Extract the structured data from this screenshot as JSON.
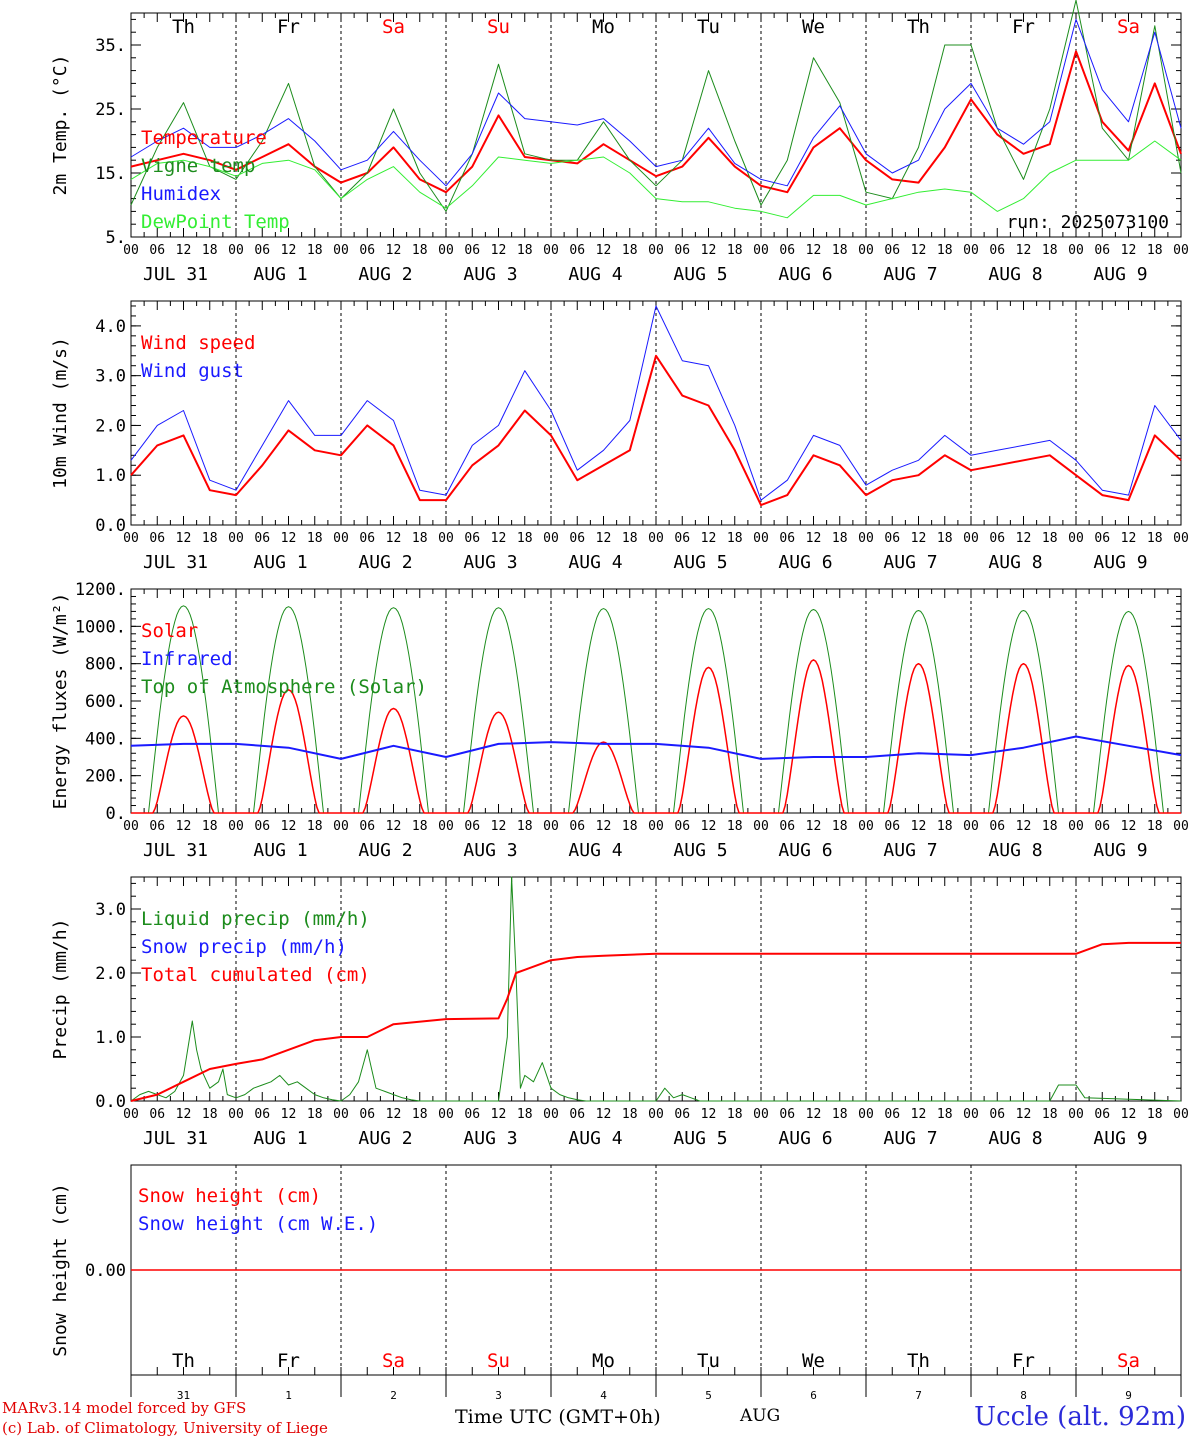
{
  "run_label": "run: 2025073100",
  "station": "Uccle (alt. 92m)",
  "footer": {
    "model": "MARv3.14 model forced by GFS",
    "lab": "(c) Lab. of Climatology, University of Liege",
    "time_axis": "Time UTC (GMT+0h)",
    "month": "AUG"
  },
  "colors": {
    "red": "#ff0000",
    "green": "#1c8c1c",
    "blue": "#1a1aff",
    "lightgreen": "#33ee33",
    "black": "#000000"
  },
  "days": [
    {
      "dow": "Th",
      "weekend": false,
      "date": "JUL 31",
      "daynum": "31"
    },
    {
      "dow": "Fr",
      "weekend": false,
      "date": "AUG  1",
      "daynum": "1"
    },
    {
      "dow": "Sa",
      "weekend": true,
      "date": "AUG  2",
      "daynum": "2"
    },
    {
      "dow": "Su",
      "weekend": true,
      "date": "AUG  3",
      "daynum": "3"
    },
    {
      "dow": "Mo",
      "weekend": false,
      "date": "AUG  4",
      "daynum": "4"
    },
    {
      "dow": "Tu",
      "weekend": false,
      "date": "AUG  5",
      "daynum": "5"
    },
    {
      "dow": "We",
      "weekend": false,
      "date": "AUG  6",
      "daynum": "6"
    },
    {
      "dow": "Th",
      "weekend": false,
      "date": "AUG  7",
      "daynum": "7"
    },
    {
      "dow": "Fr",
      "weekend": false,
      "date": "AUG  8",
      "daynum": "8"
    },
    {
      "dow": "Sa",
      "weekend": true,
      "date": "AUG  9",
      "daynum": "9"
    }
  ],
  "hour_labels": [
    "00",
    "06",
    "12",
    "18"
  ],
  "end_hour_label": "00",
  "chart_data": [
    {
      "type": "line",
      "ylabel": "2m Temp. (°C)",
      "ylim": [
        5,
        40
      ],
      "yticks": [
        5,
        15,
        25,
        35
      ],
      "ytick_labels": [
        "5.",
        "15.",
        "25.",
        "35."
      ],
      "legend": [
        {
          "label": "Temperature",
          "color": "red"
        },
        {
          "label": "Vigne temp",
          "color": "green"
        },
        {
          "label": "Humidex",
          "color": "blue"
        },
        {
          "label": "DewPoint Temp",
          "color": "lightgreen"
        }
      ],
      "series": [
        {
          "name": "Temperature",
          "color": "red",
          "width": 2,
          "x": [
            0,
            6,
            12,
            18,
            24,
            30,
            36,
            42,
            48,
            54,
            60,
            66,
            72,
            78,
            84,
            90,
            96,
            102,
            108,
            114,
            120,
            126,
            132,
            138,
            144,
            150,
            156,
            162,
            168,
            174,
            180,
            186,
            192,
            198,
            204,
            210,
            216,
            222,
            228,
            234,
            240
          ],
          "values": [
            16,
            17,
            18,
            17,
            15.5,
            17.5,
            19.5,
            16,
            13.5,
            15,
            19,
            14,
            12,
            16,
            24,
            17.5,
            17,
            16.5,
            19.5,
            17,
            14.5,
            16,
            20.5,
            16,
            13,
            12,
            19,
            22,
            17,
            14,
            13.5,
            19,
            26.5,
            21,
            18,
            19.5,
            34,
            23,
            18.5,
            29,
            18
          ]
        },
        {
          "name": "Vigne temp",
          "color": "green",
          "width": 1,
          "x": [
            0,
            6,
            12,
            18,
            24,
            30,
            36,
            42,
            48,
            54,
            60,
            66,
            72,
            78,
            84,
            90,
            96,
            102,
            108,
            114,
            120,
            126,
            132,
            138,
            144,
            150,
            156,
            162,
            168,
            174,
            180,
            186,
            192,
            198,
            204,
            210,
            216,
            222,
            228,
            234,
            240
          ],
          "values": [
            10,
            19,
            26,
            16,
            14,
            20,
            29,
            16,
            11,
            15,
            25,
            15,
            9,
            18,
            32,
            18,
            17,
            17,
            23,
            17,
            13,
            17,
            31,
            20,
            10,
            17,
            33,
            26,
            12,
            11,
            19,
            35,
            35,
            22,
            14,
            25,
            42,
            22,
            17,
            38,
            15
          ]
        },
        {
          "name": "Humidex",
          "color": "blue",
          "width": 1,
          "x": [
            0,
            6,
            12,
            18,
            24,
            30,
            36,
            42,
            48,
            54,
            60,
            66,
            72,
            78,
            84,
            90,
            96,
            102,
            108,
            114,
            120,
            126,
            132,
            138,
            144,
            150,
            156,
            162,
            168,
            174,
            180,
            186,
            192,
            198,
            204,
            210,
            216,
            222,
            228,
            234,
            240
          ],
          "values": [
            17.5,
            20,
            22,
            19,
            19,
            21,
            23.5,
            20,
            15.5,
            17,
            21.5,
            17,
            13,
            18,
            27.5,
            23.5,
            23,
            22.5,
            23.5,
            20,
            16,
            17,
            22,
            16.5,
            14,
            13,
            20.5,
            25.5,
            18,
            15,
            17,
            25,
            29,
            22,
            19.5,
            23,
            39,
            28,
            23,
            37,
            22
          ]
        },
        {
          "name": "DewPoint Temp",
          "color": "lightgreen",
          "width": 1,
          "x": [
            0,
            6,
            12,
            18,
            24,
            30,
            36,
            42,
            48,
            54,
            60,
            66,
            72,
            78,
            84,
            90,
            96,
            102,
            108,
            114,
            120,
            126,
            132,
            138,
            144,
            150,
            156,
            162,
            168,
            174,
            180,
            186,
            192,
            198,
            204,
            210,
            216,
            222,
            228,
            234,
            240
          ],
          "values": [
            14,
            16.5,
            17,
            16,
            14.5,
            16.5,
            17,
            15.5,
            11,
            14,
            16,
            12,
            9.5,
            13,
            17.5,
            17,
            16.5,
            17,
            17.5,
            15,
            11,
            10.5,
            10.5,
            9.5,
            9,
            8,
            11.5,
            11.5,
            10,
            11,
            12,
            12.5,
            12,
            9,
            11,
            15,
            17,
            17,
            17,
            20,
            17
          ]
        }
      ]
    },
    {
      "type": "line",
      "ylabel": "10m Wind (m/s)",
      "ylim": [
        0,
        4.5
      ],
      "yticks": [
        0,
        1,
        2,
        3,
        4
      ],
      "ytick_labels": [
        "0.0",
        "1.0",
        "2.0",
        "3.0",
        "4.0"
      ],
      "legend": [
        {
          "label": "Wind speed",
          "color": "red"
        },
        {
          "label": "Wind gust",
          "color": "blue"
        }
      ],
      "series": [
        {
          "name": "Wind speed",
          "color": "red",
          "width": 2,
          "x": [
            0,
            6,
            12,
            18,
            24,
            30,
            36,
            42,
            48,
            54,
            60,
            66,
            72,
            78,
            84,
            90,
            96,
            102,
            108,
            114,
            120,
            126,
            132,
            138,
            144,
            150,
            156,
            162,
            168,
            174,
            180,
            186,
            192,
            198,
            204,
            210,
            216,
            222,
            228,
            234,
            240
          ],
          "values": [
            1.0,
            1.6,
            1.8,
            0.7,
            0.6,
            1.2,
            1.9,
            1.5,
            1.4,
            2.0,
            1.6,
            0.5,
            0.5,
            1.2,
            1.6,
            2.3,
            1.8,
            0.9,
            1.2,
            1.5,
            3.4,
            2.6,
            2.4,
            1.5,
            0.4,
            0.6,
            1.4,
            1.2,
            0.6,
            0.9,
            1.0,
            1.4,
            1.1,
            1.2,
            1.3,
            1.4,
            1.0,
            0.6,
            0.5,
            1.8,
            1.3
          ]
        },
        {
          "name": "Wind gust",
          "color": "blue",
          "width": 1,
          "x": [
            0,
            6,
            12,
            18,
            24,
            30,
            36,
            42,
            48,
            54,
            60,
            66,
            72,
            78,
            84,
            90,
            96,
            102,
            108,
            114,
            120,
            126,
            132,
            138,
            144,
            150,
            156,
            162,
            168,
            174,
            180,
            186,
            192,
            198,
            204,
            210,
            216,
            222,
            228,
            234,
            240
          ],
          "values": [
            1.3,
            2.0,
            2.3,
            0.9,
            0.7,
            1.6,
            2.5,
            1.8,
            1.8,
            2.5,
            2.1,
            0.7,
            0.6,
            1.6,
            2.0,
            3.1,
            2.3,
            1.1,
            1.5,
            2.1,
            4.4,
            3.3,
            3.2,
            2.0,
            0.5,
            0.9,
            1.8,
            1.6,
            0.8,
            1.1,
            1.3,
            1.8,
            1.4,
            1.5,
            1.6,
            1.7,
            1.3,
            0.7,
            0.6,
            2.4,
            1.7
          ]
        }
      ]
    },
    {
      "type": "line",
      "ylabel": "Energy fluxes (W/m²)",
      "ylim": [
        0,
        1200
      ],
      "yticks": [
        0,
        200,
        400,
        600,
        800,
        1000,
        1200
      ],
      "ytick_labels": [
        "0.",
        "200.",
        "400.",
        "600.",
        "800.",
        "1000.",
        "1200."
      ],
      "legend": [
        {
          "label": "Solar",
          "color": "red"
        },
        {
          "label": "Infrared",
          "color": "blue"
        },
        {
          "label": "Top of Atmosphere (Solar)",
          "color": "green"
        }
      ],
      "toa_peak": [
        1110,
        1105,
        1100,
        1100,
        1095,
        1095,
        1090,
        1085,
        1085,
        1080
      ],
      "solar_peak": [
        520,
        660,
        560,
        540,
        380,
        780,
        820,
        800,
        800,
        790
      ],
      "series": [
        {
          "name": "Infrared",
          "color": "blue",
          "width": 2,
          "x": [
            0,
            12,
            24,
            36,
            48,
            60,
            72,
            84,
            96,
            108,
            120,
            132,
            144,
            156,
            168,
            180,
            192,
            204,
            216,
            228,
            240
          ],
          "values": [
            360,
            370,
            370,
            350,
            290,
            360,
            300,
            370,
            380,
            370,
            370,
            350,
            290,
            300,
            300,
            320,
            310,
            350,
            410,
            360,
            310
          ]
        }
      ]
    },
    {
      "type": "line",
      "ylabel": "Precip (mm/h)",
      "ylim": [
        0,
        3.5
      ],
      "yticks": [
        0,
        1,
        2,
        3
      ],
      "ytick_labels": [
        "0.0",
        "1.0",
        "2.0",
        "3.0"
      ],
      "legend": [
        {
          "label": "Liquid precip (mm/h)",
          "color": "green"
        },
        {
          "label": "Snow precip (mm/h)",
          "color": "blue"
        },
        {
          "label": "Total cumulated (cm)",
          "color": "red"
        }
      ],
      "series": [
        {
          "name": "Liquid precip (mm/h)",
          "color": "green",
          "width": 1,
          "x": [
            0,
            2,
            4,
            6,
            8,
            10,
            12,
            14,
            15,
            16,
            18,
            20,
            21,
            22,
            24,
            26,
            28,
            30,
            32,
            34,
            36,
            38,
            40,
            42,
            44,
            46,
            48,
            50,
            52,
            54,
            55,
            56,
            58,
            60,
            62,
            64,
            66,
            68,
            70,
            72,
            80,
            84,
            86,
            87,
            88,
            89,
            90,
            92,
            94,
            96,
            98,
            100,
            102,
            104,
            106,
            120,
            122,
            124,
            126,
            128,
            130,
            132,
            210,
            212,
            214,
            216,
            218,
            240
          ],
          "values": [
            0,
            0.1,
            0.15,
            0.1,
            0.05,
            0.15,
            0.4,
            1.25,
            0.8,
            0.5,
            0.2,
            0.3,
            0.5,
            0.1,
            0.05,
            0.1,
            0.2,
            0.25,
            0.3,
            0.4,
            0.25,
            0.3,
            0.2,
            0.1,
            0.05,
            0.02,
            0,
            0.1,
            0.3,
            0.8,
            0.5,
            0.2,
            0.15,
            0.1,
            0.05,
            0.02,
            0,
            0,
            0,
            0,
            0,
            0,
            1.0,
            3.5,
            2.0,
            0.2,
            0.4,
            0.3,
            0.6,
            0.2,
            0.1,
            0.05,
            0.02,
            0,
            0,
            0,
            0.2,
            0.05,
            0.1,
            0.05,
            0,
            0,
            0,
            0.25,
            0.25,
            0.25,
            0.05,
            0
          ]
        },
        {
          "name": "Total cumulated (cm)",
          "color": "red",
          "width": 2,
          "x": [
            0,
            6,
            12,
            18,
            24,
            30,
            36,
            42,
            48,
            54,
            60,
            72,
            84,
            86,
            88,
            90,
            96,
            102,
            108,
            120,
            132,
            144,
            168,
            192,
            216,
            222,
            228,
            240
          ],
          "values": [
            0,
            0.1,
            0.3,
            0.5,
            0.58,
            0.65,
            0.8,
            0.95,
            1.0,
            1.0,
            1.2,
            1.28,
            1.29,
            1.6,
            2.0,
            2.05,
            2.2,
            2.25,
            2.27,
            2.3,
            2.3,
            2.3,
            2.3,
            2.3,
            2.3,
            2.45,
            2.47,
            2.47
          ]
        }
      ]
    },
    {
      "type": "line",
      "ylabel": "Snow height (cm)",
      "ytick_labels": [
        "0.00"
      ],
      "legend": [
        {
          "label": "Snow height (cm)",
          "color": "red"
        },
        {
          "label": "Snow height (cm W.E.)",
          "color": "blue"
        }
      ],
      "series": [
        {
          "name": "Snow height (cm)",
          "color": "red",
          "width": 1,
          "x": [
            0,
            240
          ],
          "values": [
            0,
            0
          ]
        }
      ]
    }
  ]
}
